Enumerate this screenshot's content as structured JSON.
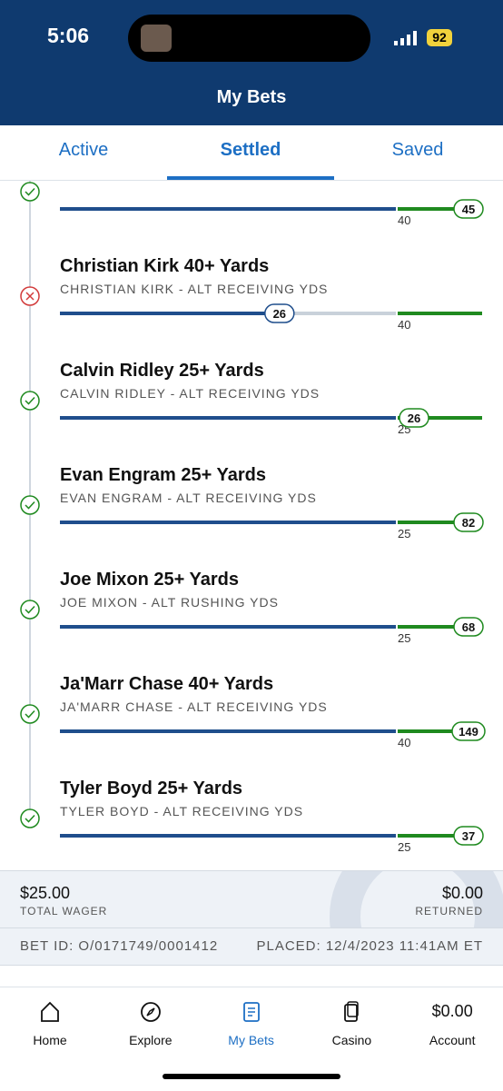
{
  "status_bar": {
    "time": "5:06",
    "battery": "92"
  },
  "header": {
    "title": "My Bets"
  },
  "tabs": {
    "items": [
      "Active",
      "Settled",
      "Saved"
    ],
    "active": 1
  },
  "legs": [
    {
      "result": 45,
      "threshold": 40,
      "status": "won"
    },
    {
      "title": "Christian Kirk 40+ Yards",
      "subtitle": "CHRISTIAN KIRK - ALT RECEIVING YDS",
      "result": 26,
      "threshold": 40,
      "status": "lost"
    },
    {
      "title": "Calvin Ridley 25+ Yards",
      "subtitle": "CALVIN RIDLEY - ALT RECEIVING YDS",
      "result": 26,
      "threshold": 25,
      "status": "won"
    },
    {
      "title": "Evan Engram 25+ Yards",
      "subtitle": "EVAN ENGRAM - ALT RECEIVING YDS",
      "result": 82,
      "threshold": 25,
      "status": "won"
    },
    {
      "title": "Joe Mixon 25+ Yards",
      "subtitle": "JOE MIXON - ALT RUSHING YDS",
      "result": 68,
      "threshold": 25,
      "status": "won"
    },
    {
      "title": "Ja'Marr Chase 40+ Yards",
      "subtitle": "JA'MARR CHASE - ALT RECEIVING YDS",
      "result": 149,
      "threshold": 40,
      "status": "won"
    },
    {
      "title": "Tyler Boyd 25+ Yards",
      "subtitle": "TYLER BOYD - ALT RECEIVING YDS",
      "result": 37,
      "threshold": 25,
      "status": "won"
    }
  ],
  "summary": {
    "total_wager": "$25.00",
    "total_wager_label": "TOTAL WAGER",
    "returned": "$0.00",
    "returned_label": "RETURNED"
  },
  "bet_info": {
    "bet_id": "BET ID: O/0171749/0001412",
    "placed": "PLACED: 12/4/2023 11:41AM ET"
  },
  "nav": {
    "items": [
      {
        "label": "Home"
      },
      {
        "label": "Explore"
      },
      {
        "label": "My Bets"
      },
      {
        "label": "Casino"
      },
      {
        "label": "Account",
        "balance": "$0.00"
      }
    ],
    "active": 2
  }
}
